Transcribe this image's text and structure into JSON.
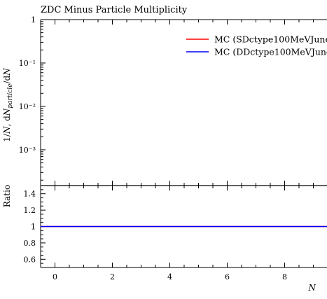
{
  "chart_data": [
    {
      "type": "line",
      "panel": "main",
      "title": "ZDC Minus Particle Multiplicity",
      "ylabel": "1/N, dN_particle / dN",
      "yscale": "log",
      "ylim": [
        0.00015,
        1
      ],
      "xlim": [
        -0.5,
        9.5
      ],
      "y_ticks": [
        {
          "value": 1,
          "label": "1"
        },
        {
          "value": 0.1,
          "label": "10⁻¹"
        },
        {
          "value": 0.01,
          "label": "10⁻²"
        },
        {
          "value": 0.001,
          "label": "10⁻³"
        }
      ],
      "legend_position": "top-right",
      "series": [
        {
          "name": "MC (SDctype100MeVJune",
          "color": "#ff0000",
          "x": [],
          "y": []
        },
        {
          "name": "MC (DDctype100MeVJune",
          "color": "#0000ff",
          "x": [],
          "y": []
        }
      ]
    },
    {
      "type": "line",
      "panel": "ratio",
      "ylabel": "Ratio",
      "xlabel": "N",
      "ylim": [
        0.5,
        1.5
      ],
      "xlim": [
        -0.5,
        9.5
      ],
      "y_ticks": [
        {
          "value": 1.4,
          "label": "1.4"
        },
        {
          "value": 1.2,
          "label": "1.2"
        },
        {
          "value": 1.0,
          "label": "1"
        },
        {
          "value": 0.8,
          "label": "0.8"
        },
        {
          "value": 0.6,
          "label": "0.6"
        }
      ],
      "x_ticks": [
        {
          "value": 0,
          "label": "0"
        },
        {
          "value": 2,
          "label": "2"
        },
        {
          "value": 4,
          "label": "4"
        },
        {
          "value": 6,
          "label": "6"
        },
        {
          "value": 8,
          "label": "8"
        }
      ],
      "series": [
        {
          "name": "MC (SDctype100MeVJune",
          "color": "#ff0000",
          "x": [
            -0.5,
            9.5
          ],
          "y": [
            1,
            1
          ]
        },
        {
          "name": "MC (DDctype100MeVJune",
          "color": "#0000ff",
          "x": [
            -0.5,
            9.5
          ],
          "y": [
            1,
            1
          ]
        }
      ]
    }
  ]
}
